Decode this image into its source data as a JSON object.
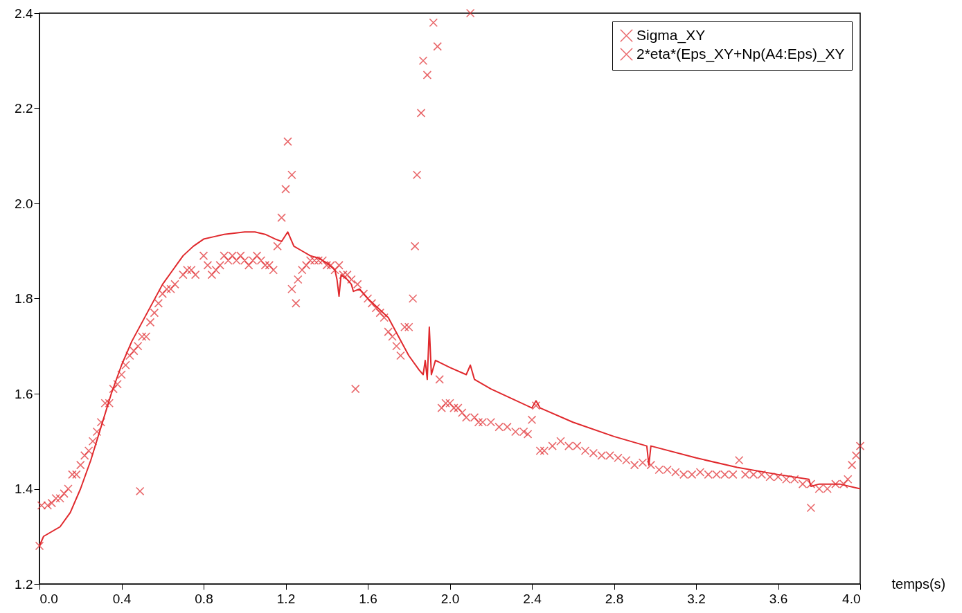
{
  "chart_data": {
    "type": "scatter",
    "xlabel": "temps(s)",
    "legend": "top right",
    "grid": false,
    "xlim": [
      0,
      4
    ],
    "ylim": [
      1.2,
      2.4
    ],
    "xticks": [
      {
        "value": 0,
        "label": "0.0"
      },
      0.4,
      0.8,
      1.2,
      1.6,
      {
        "value": 2,
        "label": "2.0"
      },
      2.4,
      2.8,
      3.2,
      3.6,
      {
        "value": 4,
        "label": "4.0"
      }
    ],
    "yticks": [
      1.2,
      1.4,
      1.6,
      1.8,
      {
        "value": 2,
        "label": "2.0"
      },
      2.2,
      2.4
    ],
    "series": [
      {
        "name": "Sigma_XY",
        "marker": "cross",
        "color": "#e0282c",
        "x": [
          0.0,
          0.01,
          0.04,
          0.06,
          0.08,
          0.1,
          0.12,
          0.14,
          0.16,
          0.18,
          0.2,
          0.22,
          0.24,
          0.26,
          0.28,
          0.3,
          0.32,
          0.34,
          0.36,
          0.38,
          0.4,
          0.42,
          0.44,
          0.46,
          0.48,
          0.49,
          0.5,
          0.52,
          0.54,
          0.56,
          0.58,
          0.6,
          0.62,
          0.64,
          0.66,
          0.7,
          0.72,
          0.74,
          0.76,
          0.8,
          0.82,
          0.84,
          0.86,
          0.88,
          0.9,
          0.92,
          0.94,
          0.96,
          0.98,
          1.0,
          1.02,
          1.04,
          1.06,
          1.08,
          1.1,
          1.12,
          1.14,
          1.16,
          1.18,
          1.2,
          1.21,
          1.23,
          1.23,
          1.25,
          1.26,
          1.28,
          1.3,
          1.32,
          1.34,
          1.36,
          1.38,
          1.4,
          1.42,
          1.44,
          1.46,
          1.48,
          1.5,
          1.52,
          1.54,
          1.55,
          1.58,
          1.6,
          1.62,
          1.64,
          1.66,
          1.68,
          1.7,
          1.72,
          1.74,
          1.76,
          1.78,
          1.8,
          1.82,
          1.83,
          1.84,
          1.86,
          1.87,
          1.89,
          1.92,
          1.94,
          1.95,
          1.96,
          1.98,
          2.0,
          2.02,
          2.04,
          2.06,
          2.08,
          2.1,
          2.12,
          2.14,
          2.16,
          2.2,
          2.24,
          2.28,
          2.32,
          2.36,
          2.38,
          2.4,
          2.42,
          2.44,
          2.46,
          2.5,
          2.54,
          2.58,
          2.62,
          2.66,
          2.7,
          2.74,
          2.78,
          2.82,
          2.86,
          2.9,
          2.94,
          2.98,
          3.02,
          3.06,
          3.1,
          3.14,
          3.18,
          3.22,
          3.26,
          3.3,
          3.34,
          3.38,
          3.41,
          3.44,
          3.48,
          3.52,
          3.56,
          3.6,
          3.64,
          3.68,
          3.72,
          3.76,
          3.76,
          3.8,
          3.84,
          3.88,
          3.92,
          3.94,
          3.96,
          3.98,
          4.0
        ],
        "values": [
          1.28,
          1.365,
          1.365,
          1.37,
          1.38,
          1.38,
          1.39,
          1.4,
          1.43,
          1.43,
          1.45,
          1.47,
          1.48,
          1.5,
          1.52,
          1.54,
          1.58,
          1.58,
          1.61,
          1.62,
          1.64,
          1.66,
          1.68,
          1.69,
          1.7,
          1.395,
          1.72,
          1.72,
          1.75,
          1.77,
          1.79,
          1.81,
          1.82,
          1.82,
          1.83,
          1.85,
          1.86,
          1.86,
          1.85,
          1.89,
          1.87,
          1.85,
          1.86,
          1.87,
          1.89,
          1.88,
          1.89,
          1.88,
          1.89,
          1.88,
          1.87,
          1.88,
          1.89,
          1.88,
          1.87,
          1.87,
          1.86,
          1.91,
          1.97,
          2.03,
          2.13,
          2.06,
          1.82,
          1.79,
          1.84,
          1.86,
          1.87,
          1.88,
          1.88,
          1.88,
          1.88,
          1.87,
          1.87,
          1.86,
          1.87,
          1.85,
          1.85,
          1.84,
          1.61,
          1.83,
          1.81,
          1.8,
          1.79,
          1.78,
          1.77,
          1.76,
          1.73,
          1.72,
          1.7,
          1.68,
          1.74,
          1.74,
          1.8,
          1.91,
          2.06,
          2.19,
          2.3,
          2.27,
          2.38,
          2.33,
          1.63,
          1.57,
          1.58,
          1.58,
          1.57,
          1.57,
          1.56,
          1.55,
          2.4,
          1.55,
          1.54,
          1.54,
          1.54,
          1.53,
          1.53,
          1.52,
          1.52,
          1.515,
          1.545,
          1.575,
          1.48,
          1.48,
          1.49,
          1.5,
          1.49,
          1.49,
          1.48,
          1.475,
          1.47,
          1.47,
          1.465,
          1.46,
          1.45,
          1.455,
          1.45,
          1.44,
          1.44,
          1.435,
          1.43,
          1.43,
          1.435,
          1.43,
          1.43,
          1.43,
          1.43,
          1.46,
          1.43,
          1.43,
          1.43,
          1.425,
          1.425,
          1.42,
          1.42,
          1.41,
          1.41,
          1.36,
          1.4,
          1.4,
          1.41,
          1.41,
          1.42,
          1.45,
          1.47,
          1.49
        ]
      },
      {
        "name": "2*eta*(Eps_XY+Np(A4:Eps)_XY",
        "type": "line",
        "line_style": "solid",
        "color": "#e0282c",
        "x": [
          0.0,
          0.02,
          0.1,
          0.15,
          0.2,
          0.25,
          0.3,
          0.35,
          0.4,
          0.45,
          0.5,
          0.55,
          0.6,
          0.65,
          0.7,
          0.75,
          0.8,
          0.85,
          0.9,
          1.0,
          1.05,
          1.1,
          1.15,
          1.18,
          1.21,
          1.24,
          1.28,
          1.32,
          1.36,
          1.4,
          1.44,
          1.45,
          1.46,
          1.47,
          1.5,
          1.52,
          1.53,
          1.56,
          1.6,
          1.65,
          1.7,
          1.75,
          1.8,
          1.85,
          1.87,
          1.88,
          1.89,
          1.9,
          1.91,
          1.93,
          2.0,
          2.08,
          2.1,
          2.12,
          2.2,
          2.3,
          2.4,
          2.42,
          2.44,
          2.6,
          2.8,
          2.96,
          2.97,
          2.98,
          3.2,
          3.4,
          3.6,
          3.75,
          3.76,
          3.8,
          3.9,
          4.0
        ],
        "values": [
          1.28,
          1.3,
          1.32,
          1.35,
          1.4,
          1.46,
          1.53,
          1.6,
          1.66,
          1.71,
          1.75,
          1.79,
          1.83,
          1.86,
          1.89,
          1.91,
          1.925,
          1.93,
          1.935,
          1.94,
          1.94,
          1.935,
          1.925,
          1.92,
          1.94,
          1.91,
          1.9,
          1.89,
          1.885,
          1.875,
          1.86,
          1.84,
          1.805,
          1.85,
          1.84,
          1.83,
          1.815,
          1.82,
          1.8,
          1.78,
          1.76,
          1.72,
          1.68,
          1.65,
          1.64,
          1.67,
          1.63,
          1.74,
          1.64,
          1.67,
          1.655,
          1.64,
          1.66,
          1.63,
          1.61,
          1.59,
          1.57,
          1.585,
          1.57,
          1.54,
          1.51,
          1.49,
          1.45,
          1.49,
          1.465,
          1.445,
          1.43,
          1.42,
          1.405,
          1.41,
          1.41,
          1.4
        ]
      }
    ]
  }
}
